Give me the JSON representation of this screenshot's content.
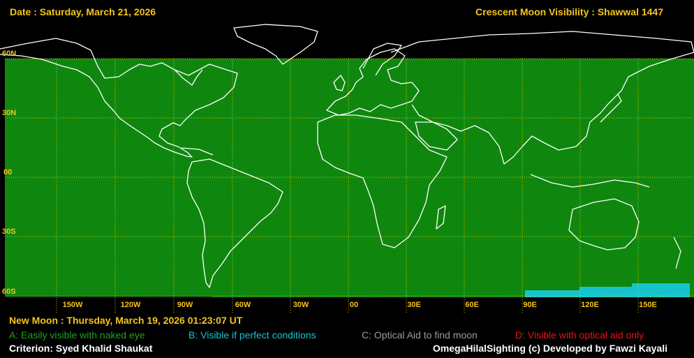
{
  "header": {
    "date": "Date : Saturday, March 21, 2026",
    "title": "Crescent Moon Visibility : Shawwal  1447"
  },
  "map": {
    "zone_colors": {
      "A": "#0f870f",
      "B": "#18c4cc",
      "land_outline": "#ffffff",
      "graticule": "#c8c800",
      "background": "#000000"
    },
    "lat_labels": [
      "60N",
      "30N",
      "00",
      "30S",
      "60S"
    ],
    "lon_labels": [
      "150W",
      "120W",
      "90W",
      "60W",
      "30W",
      "00",
      "30E",
      "60E",
      "90E",
      "120E",
      "150E"
    ]
  },
  "footer": {
    "new_moon": "New Moon : Thursday, March 19, 2026  01:23:07  UT",
    "legend": {
      "A": "A: Easily visible with naked eye",
      "B": "B: Visible if perfect conditions",
      "C": "C: Optical Aid to find moon",
      "D": "D: Visible with optical aid only"
    },
    "criterion": "Criterion: Syed Khalid Shaukat",
    "credit": "OmegaHilalSighting  (c)  Developed by Fawzi Kayali"
  }
}
